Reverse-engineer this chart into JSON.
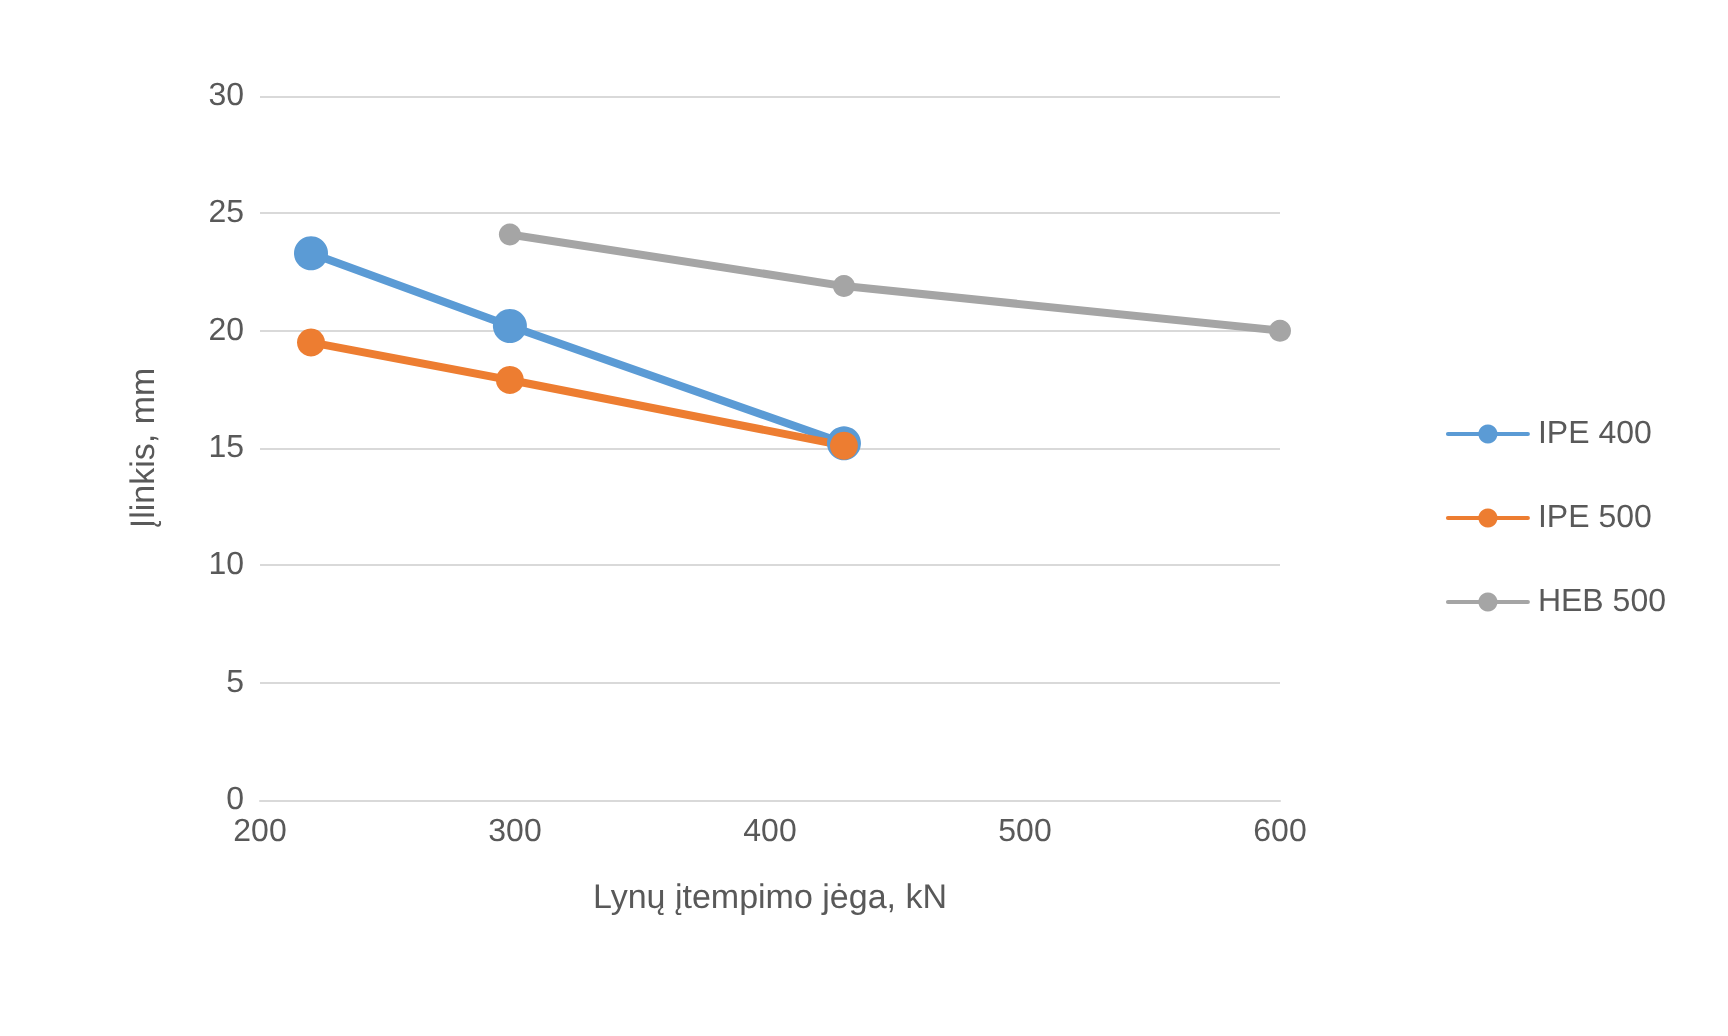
{
  "chart_data": {
    "type": "line",
    "xlabel": "Lynų įtempimo jėga, kN",
    "ylabel": "Įlinkis, mm",
    "series": [
      {
        "name": "IPE 400",
        "color": "#5b9bd5",
        "x": [
          220,
          298,
          429
        ],
        "values": [
          23.3,
          20.2,
          15.2
        ]
      },
      {
        "name": "IPE 500",
        "color": "#ed7d31",
        "x": [
          220,
          298,
          429
        ],
        "values": [
          19.5,
          17.9,
          15.1
        ]
      },
      {
        "name": "HEB 500",
        "color": "#a5a5a5",
        "x": [
          298,
          429,
          600
        ],
        "values": [
          24.1,
          21.9,
          20.0
        ]
      }
    ],
    "xlim": [
      200,
      600
    ],
    "xticks": [
      200,
      300,
      400,
      500,
      600
    ],
    "ylim": [
      0,
      30
    ],
    "yticks": [
      0,
      5,
      10,
      15,
      20,
      25,
      30
    ],
    "grid": "y",
    "legend": "right",
    "marker": "circle",
    "line_style": "solid"
  }
}
